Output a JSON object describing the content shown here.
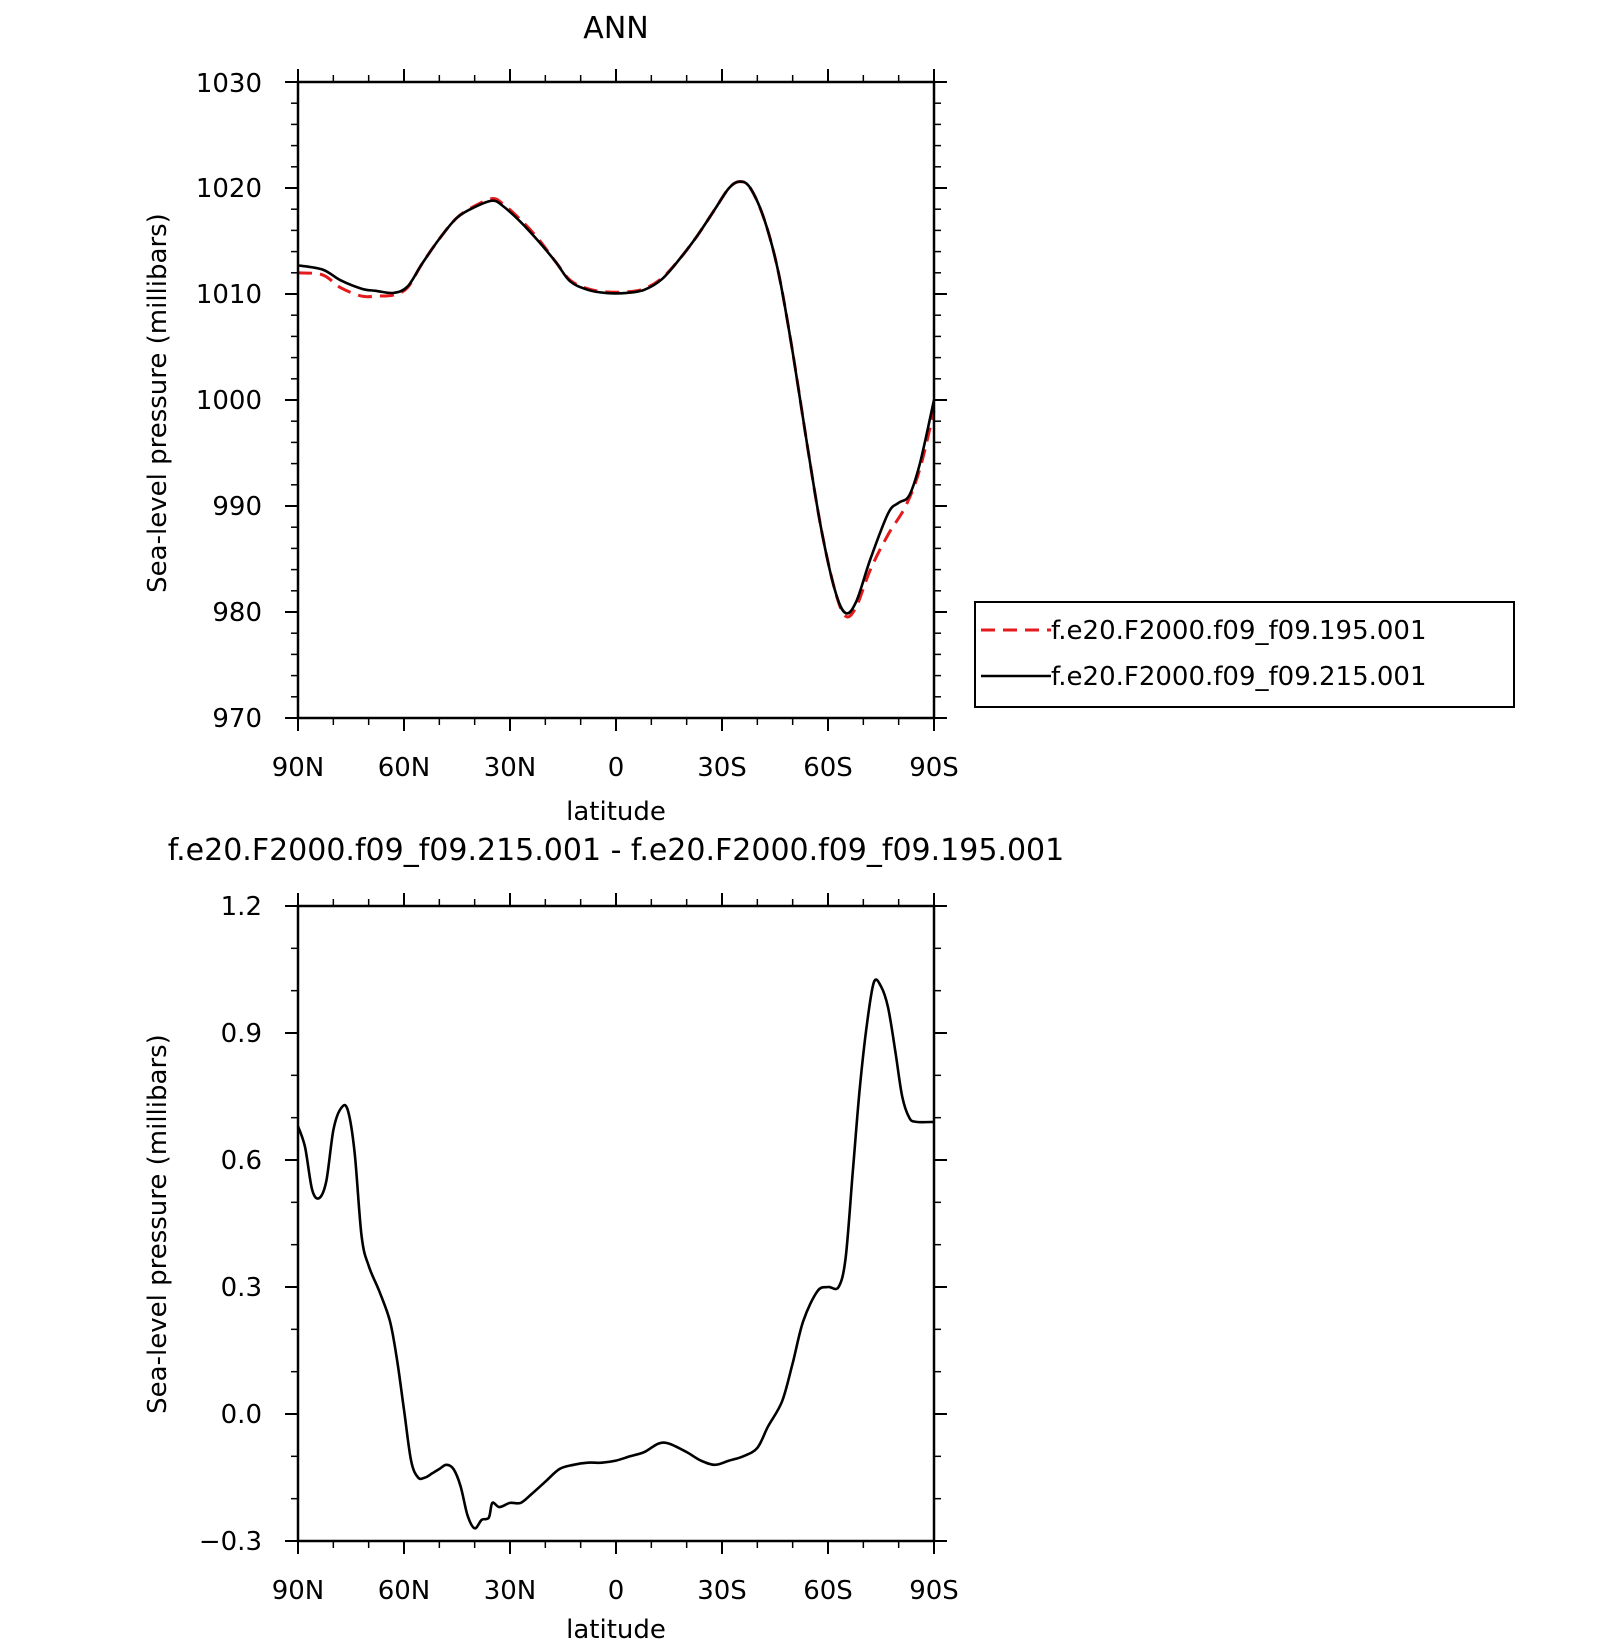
{
  "chart_data": [
    {
      "type": "line",
      "title": "ANN",
      "xlabel": "latitude",
      "ylabel": "Sea-level pressure (millibars)",
      "xlim": [
        90,
        -90
      ],
      "ylim": [
        970,
        1030
      ],
      "x_ticks": [
        90,
        60,
        30,
        0,
        -30,
        -60,
        -90
      ],
      "x_tick_labels": [
        "90N",
        "60N",
        "30N",
        "0",
        "30S",
        "60S",
        "90S"
      ],
      "y_ticks": [
        970,
        980,
        990,
        1000,
        1010,
        1020,
        1030
      ],
      "y_tick_labels": [
        "970",
        "980",
        "990",
        "1000",
        "1010",
        "1020",
        "1030"
      ],
      "legend_position": "right",
      "series": [
        {
          "name": "f.e20.F2000.f09_f09.195.001",
          "color": "#e41a1c",
          "dash": "dashed",
          "points": [
            [
              90,
              1012.0
            ],
            [
              83,
              1011.8
            ],
            [
              78,
              1010.6
            ],
            [
              72,
              1009.8
            ],
            [
              68,
              1009.8
            ],
            [
              63,
              1009.9
            ],
            [
              59,
              1010.6
            ],
            [
              55,
              1012.8
            ],
            [
              50,
              1015.2
            ],
            [
              45,
              1017.2
            ],
            [
              40,
              1018.3
            ],
            [
              35,
              1019.0
            ],
            [
              32,
              1018.5
            ],
            [
              27,
              1017.0
            ],
            [
              22,
              1015.2
            ],
            [
              17,
              1013.0
            ],
            [
              13,
              1011.3
            ],
            [
              8,
              1010.5
            ],
            [
              3,
              1010.2
            ],
            [
              -3,
              1010.2
            ],
            [
              -8,
              1010.5
            ],
            [
              -13,
              1011.5
            ],
            [
              -18,
              1013.3
            ],
            [
              -23,
              1015.5
            ],
            [
              -28,
              1018.0
            ],
            [
              -32,
              1020.0
            ],
            [
              -35,
              1020.6
            ],
            [
              -38,
              1020.0
            ],
            [
              -42,
              1017.0
            ],
            [
              -46,
              1012.0
            ],
            [
              -50,
              1004.5
            ],
            [
              -54,
              996.0
            ],
            [
              -58,
              988.0
            ],
            [
              -62,
              982.0
            ],
            [
              -65,
              979.6
            ],
            [
              -68,
              980.5
            ],
            [
              -72,
              984.0
            ],
            [
              -77,
              987.3
            ],
            [
              -82,
              990.0
            ],
            [
              -86,
              993.5
            ],
            [
              -90,
              999.0
            ]
          ]
        },
        {
          "name": "f.e20.F2000.f09_f09.215.001",
          "color": "#000000",
          "dash": "solid",
          "points": [
            [
              90,
              1012.7
            ],
            [
              83,
              1012.3
            ],
            [
              78,
              1011.3
            ],
            [
              72,
              1010.5
            ],
            [
              68,
              1010.3
            ],
            [
              63,
              1010.1
            ],
            [
              59,
              1010.7
            ],
            [
              55,
              1012.8
            ],
            [
              50,
              1015.2
            ],
            [
              45,
              1017.2
            ],
            [
              40,
              1018.2
            ],
            [
              35,
              1018.8
            ],
            [
              32,
              1018.3
            ],
            [
              27,
              1016.8
            ],
            [
              22,
              1015.0
            ],
            [
              17,
              1013.0
            ],
            [
              13,
              1011.2
            ],
            [
              8,
              1010.4
            ],
            [
              3,
              1010.1
            ],
            [
              -3,
              1010.1
            ],
            [
              -8,
              1010.4
            ],
            [
              -13,
              1011.4
            ],
            [
              -18,
              1013.3
            ],
            [
              -23,
              1015.5
            ],
            [
              -28,
              1018.0
            ],
            [
              -32,
              1020.0
            ],
            [
              -35,
              1020.6
            ],
            [
              -38,
              1020.0
            ],
            [
              -42,
              1017.0
            ],
            [
              -46,
              1012.0
            ],
            [
              -50,
              1004.5
            ],
            [
              -54,
              996.0
            ],
            [
              -58,
              988.0
            ],
            [
              -62,
              982.0
            ],
            [
              -65,
              979.9
            ],
            [
              -68,
              981.0
            ],
            [
              -72,
              985.0
            ],
            [
              -77,
              989.3
            ],
            [
              -80,
              990.3
            ],
            [
              -83,
              991.0
            ],
            [
              -86,
              994.0
            ],
            [
              -90,
              1000.0
            ]
          ]
        }
      ]
    },
    {
      "type": "line",
      "title": "f.e20.F2000.f09_f09.215.001 - f.e20.F2000.f09_f09.195.001",
      "xlabel": "latitude",
      "ylabel": "Sea-level pressure (millibars)",
      "xlim": [
        90,
        -90
      ],
      "ylim": [
        -0.3,
        1.2
      ],
      "x_ticks": [
        90,
        60,
        30,
        0,
        -30,
        -60,
        -90
      ],
      "x_tick_labels": [
        "90N",
        "60N",
        "30N",
        "0",
        "30S",
        "60S",
        "90S"
      ],
      "y_ticks": [
        -0.3,
        0.0,
        0.3,
        0.6,
        0.9,
        1.2
      ],
      "y_tick_labels": [
        "−0.3",
        "0.0",
        "0.3",
        "0.6",
        "0.9",
        "1.2"
      ],
      "series": [
        {
          "color": "#000000",
          "dash": "solid",
          "points": [
            [
              90,
              0.68
            ],
            [
              88,
              0.63
            ],
            [
              86,
              0.53
            ],
            [
              84,
              0.51
            ],
            [
              82,
              0.55
            ],
            [
              80,
              0.67
            ],
            [
              78,
              0.72
            ],
            [
              76,
              0.72
            ],
            [
              74,
              0.62
            ],
            [
              72,
              0.42
            ],
            [
              70,
              0.35
            ],
            [
              67,
              0.29
            ],
            [
              64,
              0.22
            ],
            [
              62,
              0.13
            ],
            [
              60,
              0.01
            ],
            [
              58,
              -0.11
            ],
            [
              56,
              -0.15
            ],
            [
              54,
              -0.15
            ],
            [
              52,
              -0.14
            ],
            [
              50,
              -0.13
            ],
            [
              48,
              -0.12
            ],
            [
              46,
              -0.13
            ],
            [
              44,
              -0.17
            ],
            [
              42,
              -0.24
            ],
            [
              40,
              -0.27
            ],
            [
              38,
              -0.25
            ],
            [
              36,
              -0.245
            ],
            [
              35,
              -0.21
            ],
            [
              33,
              -0.22
            ],
            [
              30,
              -0.21
            ],
            [
              27,
              -0.21
            ],
            [
              24,
              -0.19
            ],
            [
              20,
              -0.16
            ],
            [
              16,
              -0.13
            ],
            [
              12,
              -0.12
            ],
            [
              8,
              -0.115
            ],
            [
              4,
              -0.115
            ],
            [
              0,
              -0.11
            ],
            [
              -4,
              -0.1
            ],
            [
              -8,
              -0.09
            ],
            [
              -12,
              -0.07
            ],
            [
              -15,
              -0.07
            ],
            [
              -20,
              -0.09
            ],
            [
              -24,
              -0.11
            ],
            [
              -28,
              -0.12
            ],
            [
              -32,
              -0.11
            ],
            [
              -36,
              -0.1
            ],
            [
              -40,
              -0.08
            ],
            [
              -43,
              -0.03
            ],
            [
              -47,
              0.03
            ],
            [
              -50,
              0.12
            ],
            [
              -53,
              0.22
            ],
            [
              -57,
              0.29
            ],
            [
              -60,
              0.3
            ],
            [
              -63,
              0.3
            ],
            [
              -65,
              0.37
            ],
            [
              -67,
              0.57
            ],
            [
              -69,
              0.77
            ],
            [
              -71,
              0.92
            ],
            [
              -73,
              1.02
            ],
            [
              -75,
              1.01
            ],
            [
              -77,
              0.96
            ],
            [
              -79,
              0.86
            ],
            [
              -81,
              0.75
            ],
            [
              -83,
              0.7
            ],
            [
              -85,
              0.69
            ],
            [
              -90,
              0.69
            ]
          ]
        }
      ]
    }
  ]
}
